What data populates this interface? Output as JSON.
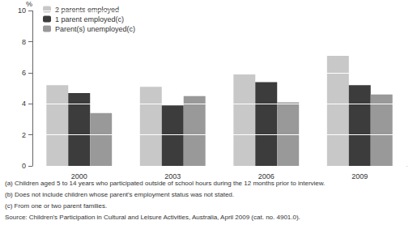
{
  "chart_data": {
    "type": "bar",
    "y_label": "%",
    "categories": [
      "2000",
      "2003",
      "2006",
      "2009"
    ],
    "series": [
      {
        "name": "2 parents employed",
        "color": "#c8c8c8",
        "values": [
          5.2,
          5.1,
          5.9,
          7.1
        ]
      },
      {
        "name": "1 parent employed(c)",
        "color": "#3c3c3c",
        "values": [
          4.7,
          3.9,
          5.4,
          5.2
        ]
      },
      {
        "name": "Parent(s) unemployed(c)",
        "color": "#999999",
        "values": [
          3.4,
          4.5,
          4.1,
          4.6
        ]
      }
    ],
    "ylim": [
      0,
      10
    ],
    "yticks": [
      0,
      2,
      4,
      6,
      8,
      10
    ],
    "grid": true,
    "legend": "upper left",
    "annotations": [
      "(a) Children aged 5 to 14 years who participated outside of school hours during the 12 months prior to interview.",
      "(b) Does not include children whose parent's employment status was not stated.",
      "(c) From one or two parent families.",
      "Source: Children's Participation in Cultural and Leisure Activities, Australia, April 2009 (cat. no. 4901.0)."
    ]
  }
}
